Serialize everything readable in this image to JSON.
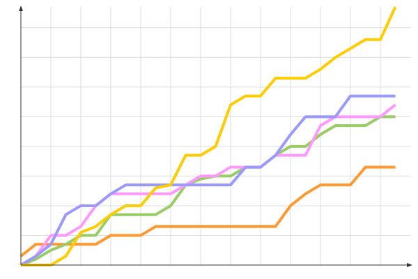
{
  "chart_data": {
    "type": "line",
    "x": [
      0,
      1,
      2,
      3,
      4,
      5,
      6,
      7,
      8,
      9,
      10,
      11,
      12,
      13,
      14,
      15,
      16,
      17,
      18,
      19,
      20,
      21,
      22,
      23,
      24,
      25
    ],
    "xlim": [
      0,
      26
    ],
    "xticks": [
      2,
      4,
      6,
      8,
      10,
      12,
      14,
      16,
      18,
      20,
      22,
      24
    ],
    "ylim": [
      0,
      8.7
    ],
    "yticks": [
      1,
      2,
      3,
      4,
      5,
      6,
      7,
      8
    ],
    "grid": true,
    "series": [
      {
        "color": "#ff9933",
        "values": [
          0.3,
          0.7,
          0.7,
          0.7,
          0.7,
          0.7,
          1,
          1,
          1,
          1.3,
          1.3,
          1.3,
          1.3,
          1.3,
          1.3,
          1.3,
          1.3,
          1.3,
          2,
          2.4,
          2.7,
          2.7,
          2.7,
          3.3,
          3.3,
          3.3
        ]
      },
      {
        "color": "#99cc66",
        "values": [
          0,
          0.2,
          0.5,
          0.7,
          1,
          1,
          1.7,
          1.7,
          1.7,
          1.7,
          2,
          2.7,
          2.9,
          3,
          3,
          3.3,
          3.3,
          3.7,
          4,
          4,
          4.4,
          4.7,
          4.7,
          4.7,
          5,
          5
        ]
      },
      {
        "color": "#ff99ff",
        "values": [
          0,
          0.3,
          1,
          1,
          1.3,
          2,
          2.4,
          2.4,
          2.4,
          2.4,
          2.4,
          2.7,
          3,
          3,
          3.3,
          3.3,
          3.3,
          3.7,
          3.7,
          3.7,
          4.7,
          5,
          5,
          5,
          5,
          5.4
        ]
      },
      {
        "color": "#9999ff",
        "values": [
          0,
          0.3,
          0.7,
          1.7,
          2,
          2,
          2.4,
          2.7,
          2.7,
          2.7,
          2.7,
          2.7,
          2.7,
          2.7,
          2.7,
          3.3,
          3.3,
          3.7,
          4.4,
          5,
          5,
          5,
          5.7,
          5.7,
          5.7,
          5.7
        ]
      },
      {
        "color": "#ffcc00",
        "values": [
          0,
          0,
          0,
          0.3,
          1.1,
          1.3,
          1.7,
          2,
          2,
          2.6,
          2.7,
          3.7,
          3.7,
          4,
          5.4,
          5.7,
          5.7,
          6.3,
          6.3,
          6.3,
          6.6,
          7,
          7.3,
          7.6,
          7.6,
          8.7
        ]
      }
    ]
  }
}
